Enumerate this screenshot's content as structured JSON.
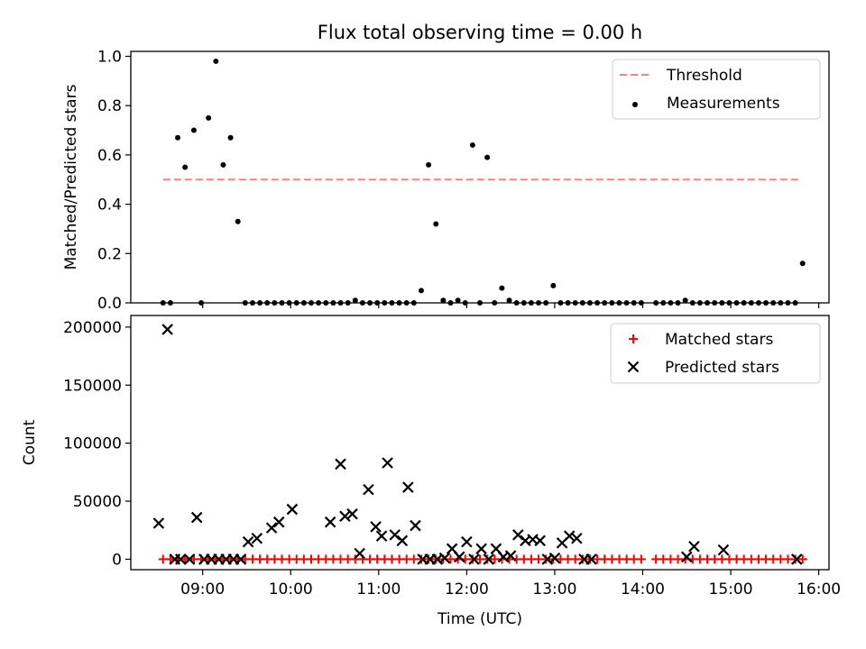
{
  "title": "Flux total observing time = 0.00 h",
  "colors": {
    "threshold": "#ff7f7f",
    "measurement": "#000000",
    "matched": "#ff0000",
    "predicted": "#000000"
  },
  "chart_data": [
    {
      "type": "scatter",
      "title": "Flux total observing time = 0.00 h",
      "ylabel": "Matched/Predicted stars",
      "xlabel": "",
      "xlim": [
        "08:11",
        "16:07"
      ],
      "ylim": [
        0,
        1.02
      ],
      "x_ticks": [
        "09:00",
        "10:00",
        "11:00",
        "12:00",
        "13:00",
        "14:00",
        "15:00",
        "16:00"
      ],
      "y_ticks": [
        {
          "v": 0,
          "label": "0.0"
        },
        {
          "v": 0.2,
          "label": "0.2"
        },
        {
          "v": 0.4,
          "label": "0.4"
        },
        {
          "v": 0.6,
          "label": "0.6"
        },
        {
          "v": 0.8,
          "label": "0.8"
        },
        {
          "v": 1.0,
          "label": "1.0"
        }
      ],
      "legend": {
        "position": "top-right",
        "entries": [
          "Threshold",
          "Measurements"
        ]
      },
      "threshold": {
        "name": "Threshold",
        "y": 0.5,
        "x_range": [
          "08:33",
          "15:48"
        ]
      },
      "series": [
        {
          "name": "Measurements",
          "x": [
            "08:33",
            "08:38",
            "08:43",
            "08:48",
            "08:54",
            "08:59",
            "09:04",
            "09:09",
            "09:14",
            "09:19",
            "09:24",
            "09:29",
            "09:34",
            "09:39",
            "09:44",
            "09:49",
            "09:54",
            "09:59",
            "10:04",
            "10:09",
            "10:14",
            "10:19",
            "10:24",
            "10:29",
            "10:34",
            "10:39",
            "10:44",
            "10:49",
            "10:54",
            "10:59",
            "11:04",
            "11:09",
            "11:14",
            "11:19",
            "11:24",
            "11:29",
            "11:34",
            "11:39",
            "11:44",
            "11:49",
            "11:54",
            "11:59",
            "12:04",
            "12:09",
            "12:14",
            "12:19",
            "12:24",
            "12:29",
            "12:34",
            "12:39",
            "12:44",
            "12:49",
            "12:54",
            "12:59",
            "13:04",
            "13:09",
            "13:14",
            "13:19",
            "13:24",
            "13:29",
            "13:34",
            "13:39",
            "13:44",
            "13:49",
            "13:54",
            "13:59",
            "14:09",
            "14:14",
            "14:19",
            "14:24",
            "14:29",
            "14:34",
            "14:39",
            "14:44",
            "14:49",
            "14:54",
            "14:59",
            "15:04",
            "15:09",
            "15:14",
            "15:19",
            "15:24",
            "15:29",
            "15:34",
            "15:39",
            "15:44",
            "15:49"
          ],
          "y": [
            0,
            0,
            0.67,
            0.55,
            0.7,
            0,
            0.75,
            0.98,
            0.56,
            0.67,
            0.33,
            0,
            0,
            0,
            0,
            0,
            0,
            0,
            0,
            0,
            0,
            0,
            0,
            0,
            0,
            0,
            0.01,
            0,
            0,
            0,
            0,
            0,
            0,
            0,
            0,
            0.05,
            0.56,
            0.32,
            0.01,
            0,
            0.01,
            0,
            0.64,
            0,
            0.59,
            0,
            0.06,
            0.01,
            0,
            0,
            0,
            0,
            0,
            0.07,
            0,
            0,
            0,
            0,
            0,
            0,
            0,
            0,
            0,
            0,
            0,
            0,
            0,
            0,
            0,
            0,
            0.01,
            0,
            0,
            0,
            0,
            0,
            0,
            0,
            0,
            0,
            0,
            0,
            0,
            0,
            0,
            0,
            0.16
          ]
        }
      ]
    },
    {
      "type": "scatter",
      "title": "",
      "ylabel": "Count",
      "xlabel": "Time (UTC)",
      "xlim": [
        "08:11",
        "16:07"
      ],
      "ylim": [
        -9000,
        210000
      ],
      "x_ticks": [
        "09:00",
        "10:00",
        "11:00",
        "12:00",
        "13:00",
        "14:00",
        "15:00",
        "16:00"
      ],
      "y_ticks": [
        {
          "v": 0,
          "label": "0"
        },
        {
          "v": 50000,
          "label": "50000"
        },
        {
          "v": 100000,
          "label": "100000"
        },
        {
          "v": 150000,
          "label": "150000"
        },
        {
          "v": 200000,
          "label": "200000"
        }
      ],
      "legend": {
        "position": "top-right",
        "entries": [
          "Matched stars",
          "Predicted stars"
        ]
      },
      "series": [
        {
          "name": "Matched stars",
          "marker": "+",
          "x": [
            "08:33",
            "08:38",
            "08:43",
            "08:48",
            "08:54",
            "08:59",
            "09:04",
            "09:09",
            "09:14",
            "09:19",
            "09:24",
            "09:29",
            "09:34",
            "09:39",
            "09:44",
            "09:49",
            "09:54",
            "09:59",
            "10:04",
            "10:09",
            "10:14",
            "10:19",
            "10:24",
            "10:29",
            "10:34",
            "10:39",
            "10:44",
            "10:49",
            "10:54",
            "10:59",
            "11:04",
            "11:09",
            "11:14",
            "11:19",
            "11:24",
            "11:29",
            "11:34",
            "11:39",
            "11:44",
            "11:49",
            "11:54",
            "11:59",
            "12:04",
            "12:09",
            "12:14",
            "12:19",
            "12:24",
            "12:29",
            "12:34",
            "12:39",
            "12:44",
            "12:49",
            "12:54",
            "12:59",
            "13:04",
            "13:09",
            "13:14",
            "13:19",
            "13:24",
            "13:29",
            "13:34",
            "13:39",
            "13:44",
            "13:49",
            "13:54",
            "13:59",
            "14:09",
            "14:14",
            "14:19",
            "14:24",
            "14:29",
            "14:34",
            "14:39",
            "14:44",
            "14:49",
            "14:54",
            "14:59",
            "15:04",
            "15:09",
            "15:14",
            "15:19",
            "15:24",
            "15:29",
            "15:34",
            "15:39",
            "15:44",
            "15:49"
          ],
          "y": [
            0,
            0,
            0,
            0,
            0,
            0,
            0,
            0,
            0,
            0,
            0,
            0,
            0,
            0,
            0,
            0,
            0,
            0,
            0,
            0,
            0,
            0,
            0,
            0,
            0,
            0,
            0,
            0,
            0,
            0,
            0,
            0,
            0,
            0,
            0,
            0,
            0,
            0,
            0,
            0,
            0,
            0,
            0,
            0,
            0,
            0,
            0,
            0,
            0,
            0,
            0,
            0,
            0,
            0,
            0,
            0,
            0,
            0,
            0,
            0,
            0,
            0,
            0,
            0,
            0,
            0,
            0,
            0,
            0,
            0,
            0,
            0,
            0,
            0,
            0,
            0,
            0,
            0,
            0,
            0,
            0,
            0,
            0,
            0,
            0,
            0,
            0
          ]
        },
        {
          "name": "Predicted stars",
          "marker": "x",
          "x": [
            "08:30",
            "08:36",
            "08:41",
            "08:45",
            "08:51",
            "08:56",
            "09:01",
            "09:06",
            "09:11",
            "09:16",
            "09:21",
            "09:26",
            "09:31",
            "09:37",
            "09:47",
            "09:52",
            "10:01",
            "10:27",
            "10:34",
            "10:37",
            "10:42",
            "10:47",
            "10:53",
            "10:58",
            "11:02",
            "11:06",
            "11:11",
            "11:16",
            "11:20",
            "11:25",
            "11:30",
            "11:35",
            "11:40",
            "11:45",
            "11:50",
            "11:55",
            "12:00",
            "12:05",
            "12:10",
            "12:15",
            "12:20",
            "12:25",
            "12:30",
            "12:35",
            "12:40",
            "12:45",
            "12:50",
            "12:55",
            "13:00",
            "13:05",
            "13:10",
            "13:15",
            "13:20",
            "13:25",
            "14:30",
            "14:35",
            "14:55",
            "15:45"
          ],
          "y": [
            31000,
            198000,
            0,
            0,
            0,
            36000,
            0,
            0,
            0,
            0,
            0,
            0,
            15000,
            18000,
            27000,
            32000,
            43000,
            32000,
            82000,
            37000,
            39000,
            5000,
            60000,
            28000,
            20000,
            83000,
            21000,
            16000,
            62000,
            29000,
            0,
            0,
            0,
            1000,
            9000,
            2000,
            15000,
            0,
            9000,
            0,
            9000,
            2000,
            3000,
            21000,
            16000,
            17000,
            16000,
            0,
            1000,
            14000,
            20000,
            18000,
            0,
            0,
            2000,
            11000,
            8000,
            0
          ]
        }
      ]
    }
  ]
}
